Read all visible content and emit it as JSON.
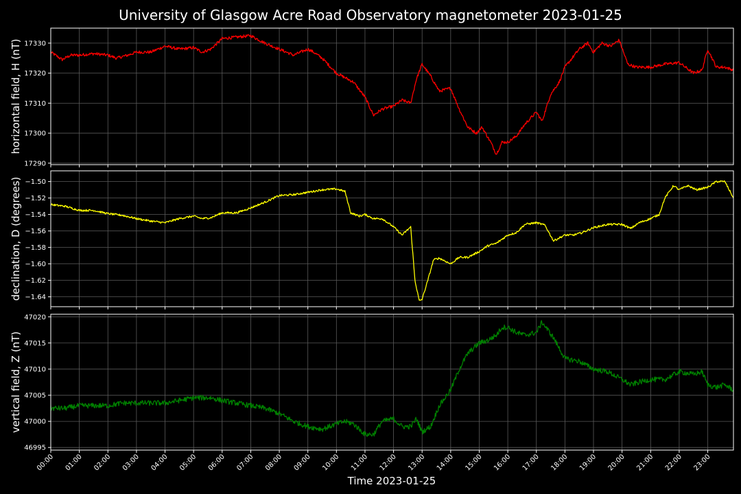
{
  "chart_data": {
    "type": "line",
    "title": "University of Glasgow Acre Road Observatory magnetometer 2023-01-25",
    "xlabel": "Time 2023-01-25",
    "x_ticks": [
      "00:00",
      "01:00",
      "02:00",
      "03:00",
      "04:00",
      "05:00",
      "06:00",
      "07:00",
      "08:00",
      "09:00",
      "10:00",
      "11:00",
      "12:00",
      "13:00",
      "14:00",
      "15:00",
      "16:00",
      "17:00",
      "18:00",
      "19:00",
      "20:00",
      "21:00",
      "22:00",
      "23:00"
    ],
    "x_range_hours": [
      0,
      23.9
    ],
    "grid": true,
    "panels": [
      {
        "ylabel": "horizontal field, H (nT)",
        "color": "#ff0000",
        "ylim": [
          17289.5,
          17335
        ],
        "yticks": [
          17290,
          17300,
          17310,
          17320,
          17330
        ],
        "ytick_labels": [
          "17290",
          "17300",
          "17310",
          "17320",
          "17330"
        ],
        "noise": 0.5,
        "series": [
          {
            "x": [
              0.0,
              0.4,
              0.7,
              1.0,
              1.5,
              2.0,
              2.3,
              2.7,
              3.0,
              3.5,
              4.0,
              4.5,
              5.0,
              5.3,
              5.6,
              6.0,
              6.5,
              7.0,
              7.5,
              8.0,
              8.5,
              9.0,
              9.2,
              9.5,
              10.0,
              10.3,
              10.6,
              11.0,
              11.3,
              11.6,
              12.0,
              12.3,
              12.6,
              12.8,
              13.0,
              13.3,
              13.6,
              14.0,
              14.3,
              14.6,
              14.9,
              15.1,
              15.4,
              15.6,
              15.8,
              16.0,
              16.3,
              16.6,
              17.0,
              17.2,
              17.5,
              17.8,
              18.0,
              18.5,
              18.8,
              19.0,
              19.3,
              19.6,
              19.9,
              20.2,
              20.5,
              21.0,
              21.5,
              22.0,
              22.5,
              22.8,
              23.0,
              23.3,
              23.6,
              23.9
            ],
            "y": [
              17327,
              17324.5,
              17326,
              17326,
              17326.5,
              17326,
              17325,
              17326,
              17327,
              17327,
              17329,
              17328,
              17328.5,
              17327,
              17328,
              17331.5,
              17332,
              17332.5,
              17330,
              17328,
              17326,
              17328,
              17327,
              17325,
              17320,
              17318.5,
              17317,
              17312,
              17306,
              17308,
              17309,
              17311,
              17310,
              17318,
              17323,
              17319,
              17314,
              17315,
              17308,
              17302,
              17300,
              17302,
              17297,
              17293,
              17297,
              17297,
              17299,
              17303,
              17307,
              17304,
              17313,
              17317,
              17322,
              17328,
              17330,
              17327,
              17330,
              17329,
              17331,
              17323,
              17322,
              17322,
              17323,
              17323.5,
              17320,
              17321,
              17328,
              17322,
              17322,
              17321
            ]
          }
        ]
      },
      {
        "ylabel": "declination, D (degrees)",
        "color": "#ffff00",
        "ylim": [
          -1.652,
          -1.487
        ],
        "yticks": [
          -1.64,
          -1.62,
          -1.6,
          -1.58,
          -1.56,
          -1.54,
          -1.52,
          -1.5
        ],
        "ytick_labels": [
          "−1.64",
          "−1.62",
          "−1.60",
          "−1.58",
          "−1.56",
          "−1.54",
          "−1.52",
          "−1.50"
        ],
        "noise": 0.0012,
        "series": [
          {
            "x": [
              0.0,
              0.5,
              1.0,
              1.5,
              2.0,
              2.5,
              3.0,
              3.5,
              4.0,
              4.5,
              5.0,
              5.3,
              5.6,
              6.0,
              6.5,
              7.0,
              7.5,
              8.0,
              8.5,
              9.0,
              9.5,
              10.0,
              10.3,
              10.5,
              10.8,
              11.0,
              11.3,
              11.6,
              12.0,
              12.3,
              12.6,
              12.75,
              12.9,
              13.0,
              13.2,
              13.4,
              13.6,
              14.0,
              14.3,
              14.6,
              15.0,
              15.3,
              15.6,
              16.0,
              16.3,
              16.6,
              17.0,
              17.3,
              17.6,
              18.0,
              18.3,
              18.6,
              19.0,
              19.5,
              20.0,
              20.3,
              20.6,
              21.0,
              21.3,
              21.5,
              21.8,
              22.0,
              22.3,
              22.6,
              23.0,
              23.3,
              23.6,
              23.9
            ],
            "y": [
              -1.528,
              -1.53,
              -1.535,
              -1.535,
              -1.539,
              -1.541,
              -1.545,
              -1.548,
              -1.55,
              -1.545,
              -1.542,
              -1.545,
              -1.544,
              -1.538,
              -1.538,
              -1.532,
              -1.525,
              -1.517,
              -1.516,
              -1.513,
              -1.51,
              -1.509,
              -1.512,
              -1.538,
              -1.542,
              -1.54,
              -1.545,
              -1.545,
              -1.555,
              -1.565,
              -1.555,
              -1.62,
              -1.645,
              -1.643,
              -1.62,
              -1.595,
              -1.593,
              -1.6,
              -1.592,
              -1.592,
              -1.585,
              -1.578,
              -1.575,
              -1.565,
              -1.562,
              -1.552,
              -1.55,
              -1.553,
              -1.572,
              -1.565,
              -1.565,
              -1.562,
              -1.556,
              -1.552,
              -1.552,
              -1.557,
              -1.55,
              -1.545,
              -1.54,
              -1.52,
              -1.505,
              -1.51,
              -1.505,
              -1.51,
              -1.507,
              -1.5,
              -1.5,
              -1.52
            ]
          }
        ]
      },
      {
        "ylabel": "vertical field, Z (nT)",
        "color": "#008000",
        "ylim": [
          46994.5,
          47020.5
        ],
        "yticks": [
          46995,
          47000,
          47005,
          47010,
          47015,
          47020
        ],
        "ytick_labels": [
          "46995",
          "47000",
          "47005",
          "47010",
          "47015",
          "47020"
        ],
        "noise": 0.5,
        "series": [
          {
            "x": [
              0.0,
              0.5,
              1.0,
              1.5,
              2.0,
              2.5,
              3.0,
              3.5,
              4.0,
              4.5,
              5.0,
              5.3,
              5.6,
              6.0,
              6.5,
              7.0,
              7.5,
              8.0,
              8.5,
              9.0,
              9.5,
              10.0,
              10.3,
              10.6,
              11.0,
              11.3,
              11.6,
              12.0,
              12.3,
              12.6,
              12.8,
              13.0,
              13.3,
              13.6,
              14.0,
              14.3,
              14.6,
              15.0,
              15.3,
              15.6,
              15.8,
              16.0,
              16.3,
              16.6,
              17.0,
              17.2,
              17.4,
              17.6,
              18.0,
              18.5,
              19.0,
              19.5,
              20.0,
              20.3,
              20.6,
              21.0,
              21.5,
              22.0,
              22.5,
              22.8,
              23.0,
              23.3,
              23.6,
              23.9
            ],
            "y": [
              47002.5,
              47002.5,
              47003,
              47003,
              47003,
              47003.5,
              47003.5,
              47003.5,
              47003.5,
              47004,
              47004.5,
              47004.5,
              47004.5,
              47004,
              47003.5,
              47003,
              47002.5,
              47001.5,
              47000,
              46999,
              46998.5,
              46999.5,
              47000,
              46999.5,
              46997.5,
              46997.5,
              47000,
              47000.5,
              46999,
              46999,
              47000.5,
              46998,
              46999,
              47003,
              47006,
              47010,
              47013,
              47015,
              47015.5,
              47016.5,
              47018,
              47018,
              47017,
              47016.5,
              47017,
              47019,
              47017.5,
              47016,
              47012,
              47011.5,
              47010,
              47009.5,
              47008,
              47007,
              47007.5,
              47008,
              47008,
              47009.5,
              47009,
              47009.5,
              47007,
              47006.5,
              47007,
              47006
            ]
          }
        ]
      }
    ]
  }
}
